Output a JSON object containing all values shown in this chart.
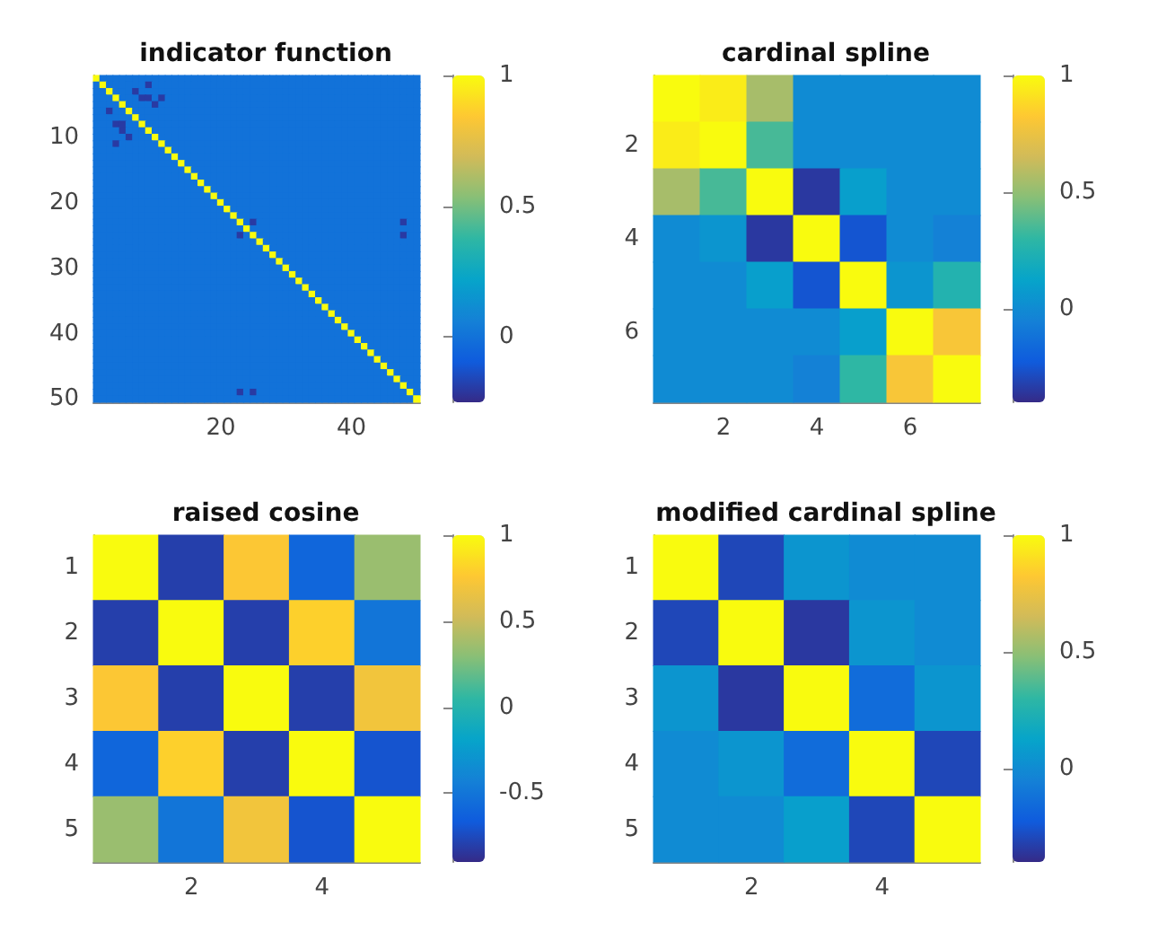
{
  "chart_data": [
    {
      "type": "heatmap",
      "title": "indicator function",
      "categories": [
        null,
        null,
        null,
        null,
        null,
        null,
        null,
        null,
        null,
        null,
        null,
        null,
        null,
        null,
        null,
        null,
        null,
        null,
        null,
        "20",
        null,
        null,
        null,
        null,
        null,
        null,
        null,
        null,
        null,
        null,
        null,
        null,
        null,
        null,
        null,
        null,
        null,
        null,
        null,
        "40",
        null,
        null,
        null,
        null,
        null,
        null,
        null,
        null,
        null,
        null
      ],
      "y_categories": [
        null,
        null,
        null,
        null,
        null,
        null,
        null,
        null,
        null,
        "10",
        null,
        null,
        null,
        null,
        null,
        null,
        null,
        null,
        null,
        "20",
        null,
        null,
        null,
        null,
        null,
        null,
        null,
        null,
        null,
        "30",
        null,
        null,
        null,
        null,
        null,
        null,
        null,
        null,
        null,
        "40",
        null,
        null,
        null,
        null,
        null,
        null,
        null,
        null,
        null,
        "50"
      ],
      "cells": [
        [
          1,
          0,
          0,
          0,
          0,
          0,
          0,
          0,
          0,
          0,
          0,
          0,
          0,
          0,
          0,
          0,
          0,
          0,
          0,
          0,
          0,
          0,
          0,
          0,
          0,
          0,
          0,
          0,
          0,
          0,
          0,
          0,
          0,
          0,
          0,
          0,
          0,
          0,
          0,
          0,
          0,
          0,
          0,
          0,
          0,
          0,
          0,
          0,
          0,
          0
        ],
        [
          0,
          1,
          0,
          0,
          0,
          0,
          0,
          0,
          -0.2,
          0,
          0,
          0,
          0,
          0,
          0,
          0,
          0,
          0,
          0,
          0,
          0,
          0,
          0,
          0,
          0,
          0,
          0,
          0,
          0,
          0,
          0,
          0,
          0,
          0,
          0,
          0,
          0,
          0,
          0,
          0,
          0,
          0,
          0,
          0,
          0,
          0,
          0,
          0,
          0,
          0
        ],
        [
          0,
          0,
          1,
          0,
          0,
          0,
          -0.2,
          0,
          0,
          0,
          0,
          0,
          0,
          0,
          0,
          0,
          0,
          0,
          0,
          0,
          0,
          0,
          0,
          0,
          0,
          0,
          0,
          0,
          0,
          0,
          0,
          0,
          0,
          0,
          0,
          0,
          0,
          0,
          0,
          0,
          0,
          0,
          0,
          0,
          0,
          0,
          0,
          0,
          0,
          0
        ],
        [
          0,
          0,
          0,
          1,
          0,
          0,
          0,
          -0.2,
          -0.2,
          0,
          -0.2,
          0,
          0,
          0,
          0,
          0,
          0,
          0,
          0,
          0,
          0,
          0,
          0,
          0,
          0,
          0,
          0,
          0,
          0,
          0,
          0,
          0,
          0,
          0,
          0,
          0,
          0,
          0,
          0,
          0,
          0,
          0,
          0,
          0,
          0,
          0,
          0,
          0,
          0,
          0
        ],
        [
          0,
          0,
          0,
          0,
          1,
          0,
          0,
          0,
          0,
          -0.2,
          0,
          0,
          0,
          0,
          0,
          0,
          0,
          0,
          0,
          0,
          0,
          0,
          0,
          0,
          0,
          0,
          0,
          0,
          0,
          0,
          0,
          0,
          0,
          0,
          0,
          0,
          0,
          0,
          0,
          0,
          0,
          0,
          0,
          0,
          0,
          0,
          0,
          0,
          0,
          0
        ],
        [
          0,
          0,
          -0.2,
          0,
          0,
          1,
          0,
          0,
          0,
          0,
          0,
          0,
          0,
          0,
          0,
          0,
          0,
          0,
          0,
          0,
          0,
          0,
          0,
          0,
          0,
          0,
          0,
          0,
          0,
          0,
          0,
          0,
          0,
          0,
          0,
          0,
          0,
          0,
          0,
          0,
          0,
          0,
          0,
          0,
          0,
          0,
          0,
          0,
          0,
          0
        ],
        [
          0,
          0,
          0,
          0,
          0,
          0,
          1,
          0,
          0,
          0,
          0,
          0,
          0,
          0,
          0,
          0,
          0,
          0,
          0,
          0,
          0,
          0,
          0,
          0,
          0,
          0,
          0,
          0,
          0,
          0,
          0,
          0,
          0,
          0,
          0,
          0,
          0,
          0,
          0,
          0,
          0,
          0,
          0,
          0,
          0,
          0,
          0,
          0,
          0,
          0
        ],
        [
          0,
          0,
          0,
          -0.2,
          -0.2,
          0,
          0,
          1,
          0,
          0,
          0,
          0,
          0,
          0,
          0,
          0,
          0,
          0,
          0,
          0,
          0,
          0,
          0,
          0,
          0,
          0,
          0,
          0,
          0,
          0,
          0,
          0,
          0,
          0,
          0,
          0,
          0,
          0,
          0,
          0,
          0,
          0,
          0,
          0,
          0,
          0,
          0,
          0,
          0,
          0
        ],
        [
          0,
          0,
          0,
          0,
          -0.2,
          0,
          0,
          0,
          1,
          0,
          0,
          0,
          0,
          0,
          0,
          0,
          0,
          0,
          0,
          0,
          0,
          0,
          0,
          0,
          0,
          0,
          0,
          0,
          0,
          0,
          0,
          0,
          0,
          0,
          0,
          0,
          0,
          0,
          0,
          0,
          0,
          0,
          0,
          0,
          0,
          0,
          0,
          0,
          0,
          0
        ],
        [
          0,
          0,
          0,
          0,
          0,
          -0.2,
          0,
          0,
          0,
          1,
          0,
          0,
          0,
          0,
          0,
          0,
          0,
          0,
          0,
          0,
          0,
          0,
          0,
          0,
          0,
          0,
          0,
          0,
          0,
          0,
          0,
          0,
          0,
          0,
          0,
          0,
          0,
          0,
          0,
          0,
          0,
          0,
          0,
          0,
          0,
          0,
          0,
          0,
          0,
          0
        ],
        [
          0,
          0,
          0,
          -0.2,
          0,
          0,
          0,
          0,
          0,
          0,
          1,
          0,
          0,
          0,
          0,
          0,
          0,
          0,
          0,
          0,
          0,
          0,
          0,
          0,
          0,
          0,
          0,
          0,
          0,
          0,
          0,
          0,
          0,
          0,
          0,
          0,
          0,
          0,
          0,
          0,
          0,
          0,
          0,
          0,
          0,
          0,
          0,
          0,
          0,
          0
        ],
        [
          0,
          0,
          0,
          0,
          0,
          0,
          0,
          0,
          0,
          0,
          0,
          1,
          0,
          0,
          0,
          0,
          0,
          0,
          0,
          0,
          0,
          0,
          0,
          0,
          0,
          0,
          0,
          0,
          0,
          0,
          0,
          0,
          0,
          0,
          0,
          0,
          0,
          0,
          0,
          0,
          0,
          0,
          0,
          0,
          0,
          0,
          0,
          0,
          0,
          0
        ],
        [
          0,
          0,
          0,
          0,
          0,
          0,
          0,
          0,
          0,
          0,
          0,
          0,
          1,
          0,
          0,
          0,
          0,
          0,
          0,
          0,
          0,
          0,
          0,
          0,
          0,
          0,
          0,
          0,
          0,
          0,
          0,
          0,
          0,
          0,
          0,
          0,
          0,
          0,
          0,
          0,
          0,
          0,
          0,
          0,
          0,
          0,
          0,
          0,
          0,
          0
        ],
        [
          0,
          0,
          0,
          0,
          0,
          0,
          0,
          0,
          0,
          0,
          0,
          0,
          0,
          1,
          0,
          0,
          0,
          0,
          0,
          0,
          0,
          0,
          0,
          0,
          0,
          0,
          0,
          0,
          0,
          0,
          0,
          0,
          0,
          0,
          0,
          0,
          0,
          0,
          0,
          0,
          0,
          0,
          0,
          0,
          0,
          0,
          0,
          0,
          0,
          0
        ],
        [
          0,
          0,
          0,
          0,
          0,
          0,
          0,
          0,
          0,
          0,
          0,
          0,
          0,
          0,
          1,
          0,
          0,
          0,
          0,
          0,
          0,
          0,
          0,
          0,
          0,
          0,
          0,
          0,
          0,
          0,
          0,
          0,
          0,
          0,
          0,
          0,
          0,
          0,
          0,
          0,
          0,
          0,
          0,
          0,
          0,
          0,
          0,
          0,
          0,
          0
        ],
        [
          0,
          0,
          0,
          0,
          0,
          0,
          0,
          0,
          0,
          0,
          0,
          0,
          0,
          0,
          0,
          1,
          0,
          0,
          0,
          0,
          0,
          0,
          0,
          0,
          0,
          0,
          0,
          0,
          0,
          0,
          0,
          0,
          0,
          0,
          0,
          0,
          0,
          0,
          0,
          0,
          0,
          0,
          0,
          0,
          0,
          0,
          0,
          0,
          0,
          0
        ],
        [
          0,
          0,
          0,
          0,
          0,
          0,
          0,
          0,
          0,
          0,
          0,
          0,
          0,
          0,
          0,
          0,
          1,
          0,
          0,
          0,
          0,
          0,
          0,
          0,
          0,
          0,
          0,
          0,
          0,
          0,
          0,
          0,
          0,
          0,
          0,
          0,
          0,
          0,
          0,
          0,
          0,
          0,
          0,
          0,
          0,
          0,
          0,
          0,
          0,
          0
        ],
        [
          0,
          0,
          0,
          0,
          0,
          0,
          0,
          0,
          0,
          0,
          0,
          0,
          0,
          0,
          0,
          0,
          0,
          1,
          0,
          0,
          0,
          0,
          0,
          0,
          0,
          0,
          0,
          0,
          0,
          0,
          0,
          0,
          0,
          0,
          0,
          0,
          0,
          0,
          0,
          0,
          0,
          0,
          0,
          0,
          0,
          0,
          0,
          0,
          0,
          0
        ],
        [
          0,
          0,
          0,
          0,
          0,
          0,
          0,
          0,
          0,
          0,
          0,
          0,
          0,
          0,
          0,
          0,
          0,
          0,
          1,
          0,
          0,
          0,
          0,
          0,
          0,
          0,
          0,
          0,
          0,
          0,
          0,
          0,
          0,
          0,
          0,
          0,
          0,
          0,
          0,
          0,
          0,
          0,
          0,
          0,
          0,
          0,
          0,
          0,
          0,
          0
        ],
        [
          0,
          0,
          0,
          0,
          0,
          0,
          0,
          0,
          0,
          0,
          0,
          0,
          0,
          0,
          0,
          0,
          0,
          0,
          0,
          1,
          0,
          0,
          0,
          0,
          0,
          0,
          0,
          0,
          0,
          0,
          0,
          0,
          0,
          0,
          0,
          0,
          0,
          0,
          0,
          0,
          0,
          0,
          0,
          0,
          0,
          0,
          0,
          0,
          0,
          0
        ],
        [
          0,
          0,
          0,
          0,
          0,
          0,
          0,
          0,
          0,
          0,
          0,
          0,
          0,
          0,
          0,
          0,
          0,
          0,
          0,
          0,
          1,
          0,
          0,
          0,
          0,
          0,
          0,
          0,
          0,
          0,
          0,
          0,
          0,
          0,
          0,
          0,
          0,
          0,
          0,
          0,
          0,
          0,
          0,
          0,
          0,
          0,
          0,
          0,
          0,
          0
        ],
        [
          0,
          0,
          0,
          0,
          0,
          0,
          0,
          0,
          0,
          0,
          0,
          0,
          0,
          0,
          0,
          0,
          0,
          0,
          0,
          0,
          0,
          1,
          0,
          0,
          0,
          0,
          0,
          0,
          0,
          0,
          0,
          0,
          0,
          0,
          0,
          0,
          0,
          0,
          0,
          0,
          0,
          0,
          0,
          0,
          0,
          0,
          0,
          0,
          0,
          0
        ],
        [
          0,
          0,
          0,
          0,
          0,
          0,
          0,
          0,
          0,
          0,
          0,
          0,
          0,
          0,
          0,
          0,
          0,
          0,
          0,
          0,
          0,
          0,
          1,
          0,
          -0.2,
          0,
          0,
          0,
          0,
          0,
          0,
          0,
          0,
          0,
          0,
          0,
          0,
          0,
          0,
          0,
          0,
          0,
          0,
          0,
          0,
          0,
          0,
          -0.2,
          0,
          0
        ],
        [
          0,
          0,
          0,
          0,
          0,
          0,
          0,
          0,
          0,
          0,
          0,
          0,
          0,
          0,
          0,
          0,
          0,
          0,
          0,
          0,
          0,
          0,
          0,
          1,
          0,
          0,
          0,
          0,
          0,
          0,
          0,
          0,
          0,
          0,
          0,
          0,
          0,
          0,
          0,
          0,
          0,
          0,
          0,
          0,
          0,
          0,
          0,
          0,
          0,
          0
        ],
        [
          0,
          0,
          0,
          0,
          0,
          0,
          0,
          0,
          0,
          0,
          0,
          0,
          0,
          0,
          0,
          0,
          0,
          0,
          0,
          0,
          0,
          0,
          -0.2,
          0,
          1,
          0,
          0,
          0,
          0,
          0,
          0,
          0,
          0,
          0,
          0,
          0,
          0,
          0,
          0,
          0,
          0,
          0,
          0,
          0,
          0,
          0,
          0,
          -0.2,
          0,
          0
        ],
        [
          0,
          0,
          0,
          0,
          0,
          0,
          0,
          0,
          0,
          0,
          0,
          0,
          0,
          0,
          0,
          0,
          0,
          0,
          0,
          0,
          0,
          0,
          0,
          0,
          0,
          1,
          0,
          0,
          0,
          0,
          0,
          0,
          0,
          0,
          0,
          0,
          0,
          0,
          0,
          0,
          0,
          0,
          0,
          0,
          0,
          0,
          0,
          0,
          0,
          0
        ],
        [
          0,
          0,
          0,
          0,
          0,
          0,
          0,
          0,
          0,
          0,
          0,
          0,
          0,
          0,
          0,
          0,
          0,
          0,
          0,
          0,
          0,
          0,
          0,
          0,
          0,
          0,
          1,
          0,
          0,
          0,
          0,
          0,
          0,
          0,
          0,
          0,
          0,
          0,
          0,
          0,
          0,
          0,
          0,
          0,
          0,
          0,
          0,
          0,
          0,
          0
        ],
        [
          0,
          0,
          0,
          0,
          0,
          0,
          0,
          0,
          0,
          0,
          0,
          0,
          0,
          0,
          0,
          0,
          0,
          0,
          0,
          0,
          0,
          0,
          0,
          0,
          0,
          0,
          0,
          1,
          0,
          0,
          0,
          0,
          0,
          0,
          0,
          0,
          0,
          0,
          0,
          0,
          0,
          0,
          0,
          0,
          0,
          0,
          0,
          0,
          0,
          0
        ],
        [
          0,
          0,
          0,
          0,
          0,
          0,
          0,
          0,
          0,
          0,
          0,
          0,
          0,
          0,
          0,
          0,
          0,
          0,
          0,
          0,
          0,
          0,
          0,
          0,
          0,
          0,
          0,
          0,
          1,
          0,
          0,
          0,
          0,
          0,
          0,
          0,
          0,
          0,
          0,
          0,
          0,
          0,
          0,
          0,
          0,
          0,
          0,
          0,
          0,
          0
        ],
        [
          0,
          0,
          0,
          0,
          0,
          0,
          0,
          0,
          0,
          0,
          0,
          0,
          0,
          0,
          0,
          0,
          0,
          0,
          0,
          0,
          0,
          0,
          0,
          0,
          0,
          0,
          0,
          0,
          0,
          1,
          0,
          0,
          0,
          0,
          0,
          0,
          0,
          0,
          0,
          0,
          0,
          0,
          0,
          0,
          0,
          0,
          0,
          0,
          0,
          0
        ],
        [
          0,
          0,
          0,
          0,
          0,
          0,
          0,
          0,
          0,
          0,
          0,
          0,
          0,
          0,
          0,
          0,
          0,
          0,
          0,
          0,
          0,
          0,
          0,
          0,
          0,
          0,
          0,
          0,
          0,
          0,
          1,
          0,
          0,
          0,
          0,
          0,
          0,
          0,
          0,
          0,
          0,
          0,
          0,
          0,
          0,
          0,
          0,
          0,
          0,
          0
        ],
        [
          0,
          0,
          0,
          0,
          0,
          0,
          0,
          0,
          0,
          0,
          0,
          0,
          0,
          0,
          0,
          0,
          0,
          0,
          0,
          0,
          0,
          0,
          0,
          0,
          0,
          0,
          0,
          0,
          0,
          0,
          0,
          1,
          0,
          0,
          0,
          0,
          0,
          0,
          0,
          0,
          0,
          0,
          0,
          0,
          0,
          0,
          0,
          0,
          0,
          0
        ],
        [
          0,
          0,
          0,
          0,
          0,
          0,
          0,
          0,
          0,
          0,
          0,
          0,
          0,
          0,
          0,
          0,
          0,
          0,
          0,
          0,
          0,
          0,
          0,
          0,
          0,
          0,
          0,
          0,
          0,
          0,
          0,
          0,
          1,
          0,
          0,
          0,
          0,
          0,
          0,
          0,
          0,
          0,
          0,
          0,
          0,
          0,
          0,
          0,
          0,
          0
        ],
        [
          0,
          0,
          0,
          0,
          0,
          0,
          0,
          0,
          0,
          0,
          0,
          0,
          0,
          0,
          0,
          0,
          0,
          0,
          0,
          0,
          0,
          0,
          0,
          0,
          0,
          0,
          0,
          0,
          0,
          0,
          0,
          0,
          0,
          1,
          0,
          0,
          0,
          0,
          0,
          0,
          0,
          0,
          0,
          0,
          0,
          0,
          0,
          0,
          0,
          0
        ],
        [
          0,
          0,
          0,
          0,
          0,
          0,
          0,
          0,
          0,
          0,
          0,
          0,
          0,
          0,
          0,
          0,
          0,
          0,
          0,
          0,
          0,
          0,
          0,
          0,
          0,
          0,
          0,
          0,
          0,
          0,
          0,
          0,
          0,
          0,
          1,
          0,
          0,
          0,
          0,
          0,
          0,
          0,
          0,
          0,
          0,
          0,
          0,
          0,
          0,
          0
        ],
        [
          0,
          0,
          0,
          0,
          0,
          0,
          0,
          0,
          0,
          0,
          0,
          0,
          0,
          0,
          0,
          0,
          0,
          0,
          0,
          0,
          0,
          0,
          0,
          0,
          0,
          0,
          0,
          0,
          0,
          0,
          0,
          0,
          0,
          0,
          0,
          1,
          0,
          0,
          0,
          0,
          0,
          0,
          0,
          0,
          0,
          0,
          0,
          0,
          0,
          0
        ],
        [
          0,
          0,
          0,
          0,
          0,
          0,
          0,
          0,
          0,
          0,
          0,
          0,
          0,
          0,
          0,
          0,
          0,
          0,
          0,
          0,
          0,
          0,
          0,
          0,
          0,
          0,
          0,
          0,
          0,
          0,
          0,
          0,
          0,
          0,
          0,
          0,
          1,
          0,
          0,
          0,
          0,
          0,
          0,
          0,
          0,
          0,
          0,
          0,
          0,
          0
        ],
        [
          0,
          0,
          0,
          0,
          0,
          0,
          0,
          0,
          0,
          0,
          0,
          0,
          0,
          0,
          0,
          0,
          0,
          0,
          0,
          0,
          0,
          0,
          0,
          0,
          0,
          0,
          0,
          0,
          0,
          0,
          0,
          0,
          0,
          0,
          0,
          0,
          0,
          1,
          0,
          0,
          0,
          0,
          0,
          0,
          0,
          0,
          0,
          0,
          0,
          0
        ],
        [
          0,
          0,
          0,
          0,
          0,
          0,
          0,
          0,
          0,
          0,
          0,
          0,
          0,
          0,
          0,
          0,
          0,
          0,
          0,
          0,
          0,
          0,
          0,
          0,
          0,
          0,
          0,
          0,
          0,
          0,
          0,
          0,
          0,
          0,
          0,
          0,
          0,
          0,
          1,
          0,
          0,
          0,
          0,
          0,
          0,
          0,
          0,
          0,
          0,
          0
        ],
        [
          0,
          0,
          0,
          0,
          0,
          0,
          0,
          0,
          0,
          0,
          0,
          0,
          0,
          0,
          0,
          0,
          0,
          0,
          0,
          0,
          0,
          0,
          0,
          0,
          0,
          0,
          0,
          0,
          0,
          0,
          0,
          0,
          0,
          0,
          0,
          0,
          0,
          0,
          0,
          1,
          0,
          0,
          0,
          0,
          0,
          0,
          0,
          0,
          0,
          0
        ],
        [
          0,
          0,
          0,
          0,
          0,
          0,
          0,
          0,
          0,
          0,
          0,
          0,
          0,
          0,
          0,
          0,
          0,
          0,
          0,
          0,
          0,
          0,
          0,
          0,
          0,
          0,
          0,
          0,
          0,
          0,
          0,
          0,
          0,
          0,
          0,
          0,
          0,
          0,
          0,
          0,
          1,
          0,
          0,
          0,
          0,
          0,
          0,
          0,
          0,
          0
        ],
        [
          0,
          0,
          0,
          0,
          0,
          0,
          0,
          0,
          0,
          0,
          0,
          0,
          0,
          0,
          0,
          0,
          0,
          0,
          0,
          0,
          0,
          0,
          0,
          0,
          0,
          0,
          0,
          0,
          0,
          0,
          0,
          0,
          0,
          0,
          0,
          0,
          0,
          0,
          0,
          0,
          0,
          1,
          0,
          0,
          0,
          0,
          0,
          0,
          0,
          0
        ],
        [
          0,
          0,
          0,
          0,
          0,
          0,
          0,
          0,
          0,
          0,
          0,
          0,
          0,
          0,
          0,
          0,
          0,
          0,
          0,
          0,
          0,
          0,
          0,
          0,
          0,
          0,
          0,
          0,
          0,
          0,
          0,
          0,
          0,
          0,
          0,
          0,
          0,
          0,
          0,
          0,
          0,
          0,
          1,
          0,
          0,
          0,
          0,
          0,
          0,
          0
        ],
        [
          0,
          0,
          0,
          0,
          0,
          0,
          0,
          0,
          0,
          0,
          0,
          0,
          0,
          0,
          0,
          0,
          0,
          0,
          0,
          0,
          0,
          0,
          0,
          0,
          0,
          0,
          0,
          0,
          0,
          0,
          0,
          0,
          0,
          0,
          0,
          0,
          0,
          0,
          0,
          0,
          0,
          0,
          0,
          1,
          0,
          0,
          0,
          0,
          0,
          0
        ],
        [
          0,
          0,
          0,
          0,
          0,
          0,
          0,
          0,
          0,
          0,
          0,
          0,
          0,
          0,
          0,
          0,
          0,
          0,
          0,
          0,
          0,
          0,
          0,
          0,
          0,
          0,
          0,
          0,
          0,
          0,
          0,
          0,
          0,
          0,
          0,
          0,
          0,
          0,
          0,
          0,
          0,
          0,
          0,
          0,
          1,
          0,
          0,
          0,
          0,
          0
        ],
        [
          0,
          0,
          0,
          0,
          0,
          0,
          0,
          0,
          0,
          0,
          0,
          0,
          0,
          0,
          0,
          0,
          0,
          0,
          0,
          0,
          0,
          0,
          0,
          0,
          0,
          0,
          0,
          0,
          0,
          0,
          0,
          0,
          0,
          0,
          0,
          0,
          0,
          0,
          0,
          0,
          0,
          0,
          0,
          0,
          0,
          1,
          0,
          0,
          0,
          0
        ],
        [
          0,
          0,
          0,
          0,
          0,
          0,
          0,
          0,
          0,
          0,
          0,
          0,
          0,
          0,
          0,
          0,
          0,
          0,
          0,
          0,
          0,
          0,
          0,
          0,
          0,
          0,
          0,
          0,
          0,
          0,
          0,
          0,
          0,
          0,
          0,
          0,
          0,
          0,
          0,
          0,
          0,
          0,
          0,
          0,
          0,
          0,
          1,
          0,
          0,
          0
        ],
        [
          0,
          0,
          0,
          0,
          0,
          0,
          0,
          0,
          0,
          0,
          0,
          0,
          0,
          0,
          0,
          0,
          0,
          0,
          0,
          0,
          0,
          0,
          0,
          0,
          0,
          0,
          0,
          0,
          0,
          0,
          0,
          0,
          0,
          0,
          0,
          0,
          0,
          0,
          0,
          0,
          0,
          0,
          0,
          0,
          0,
          0,
          0,
          1,
          0,
          0
        ],
        [
          0,
          0,
          0,
          0,
          0,
          0,
          0,
          0,
          0,
          0,
          0,
          0,
          0,
          0,
          0,
          0,
          0,
          0,
          0,
          0,
          0,
          0,
          -0.2,
          0,
          -0.2,
          0,
          0,
          0,
          0,
          0,
          0,
          0,
          0,
          0,
          0,
          0,
          0,
          0,
          0,
          0,
          0,
          0,
          0,
          0,
          0,
          0,
          0,
          0,
          1,
          0
        ],
        [
          0,
          0,
          0,
          0,
          0,
          0,
          0,
          0,
          0,
          0,
          0,
          0,
          0,
          0,
          0,
          0,
          0,
          0,
          0,
          0,
          0,
          0,
          0,
          0,
          0,
          0,
          0,
          0,
          0,
          0,
          0,
          0,
          0,
          0,
          0,
          0,
          0,
          0,
          0,
          0,
          0,
          0,
          0,
          0,
          0,
          0,
          0,
          0,
          0,
          1
        ]
      ],
      "clim": [
        -0.25,
        1
      ],
      "cticks": [
        0,
        0.5,
        1
      ]
    },
    {
      "type": "heatmap",
      "title": "cardinal spline",
      "categories": [
        null,
        "2",
        null,
        "4",
        null,
        "6",
        null
      ],
      "y_categories": [
        null,
        "2",
        null,
        "4",
        null,
        "6",
        null
      ],
      "cells": [
        [
          1,
          0.95,
          0.55,
          0,
          0,
          0,
          0
        ],
        [
          0.95,
          1,
          0.35,
          0,
          0,
          0,
          0
        ],
        [
          0.55,
          0.35,
          1,
          -0.35,
          0.1,
          0,
          0
        ],
        [
          0,
          0.05,
          -0.35,
          1,
          -0.25,
          0,
          -0.05
        ],
        [
          0,
          0,
          0.1,
          -0.25,
          1,
          0.05,
          0.25
        ],
        [
          0,
          0,
          0,
          0,
          0.1,
          1,
          0.8
        ],
        [
          0,
          0,
          0,
          -0.05,
          0.3,
          0.8,
          1
        ]
      ],
      "clim": [
        -0.4,
        1
      ],
      "cticks": [
        0,
        0.5,
        1
      ]
    },
    {
      "type": "heatmap",
      "title": "raised cosine",
      "categories": [
        null,
        "2",
        null,
        "4",
        null
      ],
      "y_categories": [
        "1",
        "2",
        "3",
        "4",
        "5"
      ],
      "cells": [
        [
          1,
          -0.8,
          0.75,
          -0.6,
          0.35
        ],
        [
          -0.8,
          1,
          -0.8,
          0.8,
          -0.5
        ],
        [
          0.75,
          -0.8,
          1,
          -0.8,
          0.7
        ],
        [
          -0.6,
          0.8,
          -0.8,
          1,
          -0.7
        ],
        [
          0.35,
          -0.5,
          0.7,
          -0.7,
          1
        ]
      ],
      "clim": [
        -0.9,
        1
      ],
      "cticks": [
        -0.5,
        0,
        0.5,
        1
      ]
    },
    {
      "type": "heatmap",
      "title": "modified cardinal spline",
      "categories": [
        null,
        "2",
        null,
        "4",
        null
      ],
      "y_categories": [
        "1",
        "2",
        "3",
        "4",
        "5"
      ],
      "cells": [
        [
          1,
          -0.3,
          0.05,
          0,
          0
        ],
        [
          -0.3,
          1,
          -0.35,
          0.05,
          0
        ],
        [
          0.05,
          -0.35,
          1,
          -0.15,
          0.05
        ],
        [
          0,
          0.05,
          -0.15,
          1,
          -0.3
        ],
        [
          0,
          0,
          0.1,
          -0.3,
          1
        ]
      ],
      "clim": [
        -0.4,
        1
      ],
      "cticks": [
        0,
        0.5,
        1
      ]
    }
  ]
}
